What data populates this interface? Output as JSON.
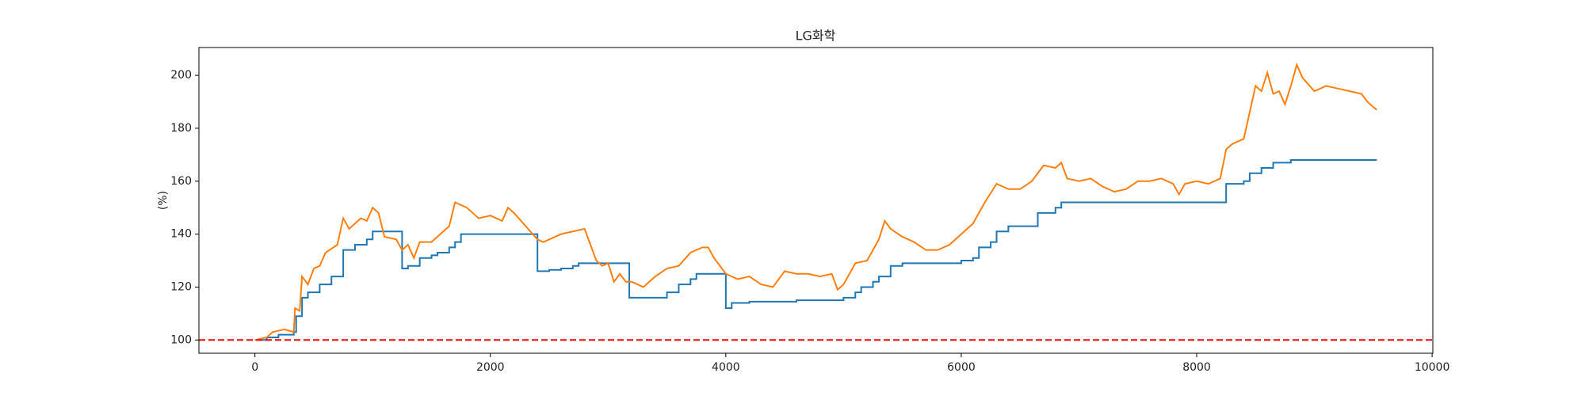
{
  "chart_data": {
    "type": "line",
    "title": "LG화학",
    "ylabel": "(%)",
    "xlim": [
      -476,
      10006
    ],
    "ylim": [
      95,
      210.5
    ],
    "xticks": [
      0,
      2000,
      4000,
      6000,
      8000,
      10000
    ],
    "yticks": [
      100,
      120,
      140,
      160,
      180,
      200
    ],
    "hline": {
      "value": 100,
      "color": "#ff0000",
      "dashed": true
    },
    "series": [
      {
        "color": "#1f77b4",
        "drawstyle": "steps-post",
        "x": [
          0,
          100,
          200,
          330,
          350,
          400,
          450,
          550,
          650,
          750,
          850,
          950,
          1000,
          1250,
          1300,
          1400,
          1500,
          1550,
          1650,
          1700,
          1750,
          2400,
          2500,
          2600,
          2700,
          2750,
          3180,
          3500,
          3600,
          3700,
          3750,
          4000,
          4050,
          4200,
          4600,
          5000,
          5100,
          5150,
          5250,
          5300,
          5400,
          5500,
          6000,
          6100,
          6150,
          6250,
          6300,
          6400,
          6650,
          6800,
          6850,
          8250,
          8400,
          8450,
          8550,
          8650,
          8800,
          9530
        ],
        "values": [
          100,
          101,
          102,
          103,
          109,
          116,
          118,
          121,
          124,
          134,
          136,
          138,
          141,
          127,
          128,
          131,
          132,
          133,
          135,
          137,
          140,
          126,
          126.5,
          127,
          128,
          129,
          116,
          118,
          121,
          123,
          125,
          112,
          114,
          114.5,
          115,
          116,
          118,
          120,
          122,
          124,
          128,
          129,
          130,
          131,
          135,
          137,
          141,
          143,
          148,
          150,
          152,
          159,
          160,
          163,
          165,
          167,
          168,
          168
        ]
      },
      {
        "color": "#ff7f0e",
        "drawstyle": "default",
        "x": [
          0,
          100,
          150,
          250,
          330,
          340,
          380,
          400,
          450,
          500,
          550,
          600,
          700,
          750,
          800,
          850,
          900,
          950,
          1000,
          1050,
          1100,
          1200,
          1250,
          1300,
          1350,
          1400,
          1500,
          1600,
          1650,
          1700,
          1800,
          1900,
          2000,
          2100,
          2150,
          2200,
          2300,
          2400,
          2450,
          2500,
          2600,
          2700,
          2800,
          2850,
          2900,
          2950,
          3000,
          3050,
          3100,
          3150,
          3200,
          3300,
          3400,
          3500,
          3600,
          3700,
          3800,
          3850,
          3900,
          4000,
          4100,
          4200,
          4300,
          4400,
          4500,
          4600,
          4700,
          4800,
          4900,
          4950,
          5000,
          5100,
          5200,
          5300,
          5350,
          5400,
          5500,
          5600,
          5700,
          5800,
          5900,
          6000,
          6100,
          6200,
          6300,
          6400,
          6500,
          6600,
          6700,
          6800,
          6850,
          6900,
          7000,
          7100,
          7200,
          7300,
          7400,
          7500,
          7600,
          7700,
          7800,
          7850,
          7900,
          8000,
          8100,
          8200,
          8250,
          8300,
          8400,
          8450,
          8500,
          8550,
          8600,
          8650,
          8700,
          8750,
          8800,
          8850,
          8900,
          9000,
          9100,
          9200,
          9300,
          9400,
          9450,
          9500,
          9530
        ],
        "values": [
          100,
          101,
          103,
          104,
          103,
          112,
          111,
          124,
          121,
          127,
          128,
          133,
          136,
          146,
          142,
          144,
          146,
          145,
          150,
          148,
          139,
          138,
          134,
          136,
          131,
          137,
          137,
          141,
          143,
          152,
          150,
          146,
          147,
          145,
          150,
          148,
          143,
          138,
          137,
          138,
          140,
          141,
          142,
          136,
          130,
          128,
          129,
          122,
          125,
          122,
          122,
          120,
          124,
          127,
          128,
          133,
          135,
          135,
          131,
          125,
          123,
          124,
          121,
          120,
          126,
          125,
          125,
          124,
          125,
          119,
          121,
          129,
          130,
          138,
          145,
          142,
          139,
          137,
          134,
          134,
          136,
          140,
          144,
          152,
          159,
          157,
          157,
          160,
          166,
          165,
          167,
          161,
          160,
          161,
          158,
          156,
          157,
          160,
          160,
          161,
          159,
          155,
          159,
          160,
          159,
          161,
          172,
          174,
          176,
          186,
          196,
          194,
          201,
          193,
          194,
          189,
          196,
          204,
          199,
          194,
          196,
          195,
          194,
          193,
          190,
          188,
          187
        ]
      }
    ]
  }
}
